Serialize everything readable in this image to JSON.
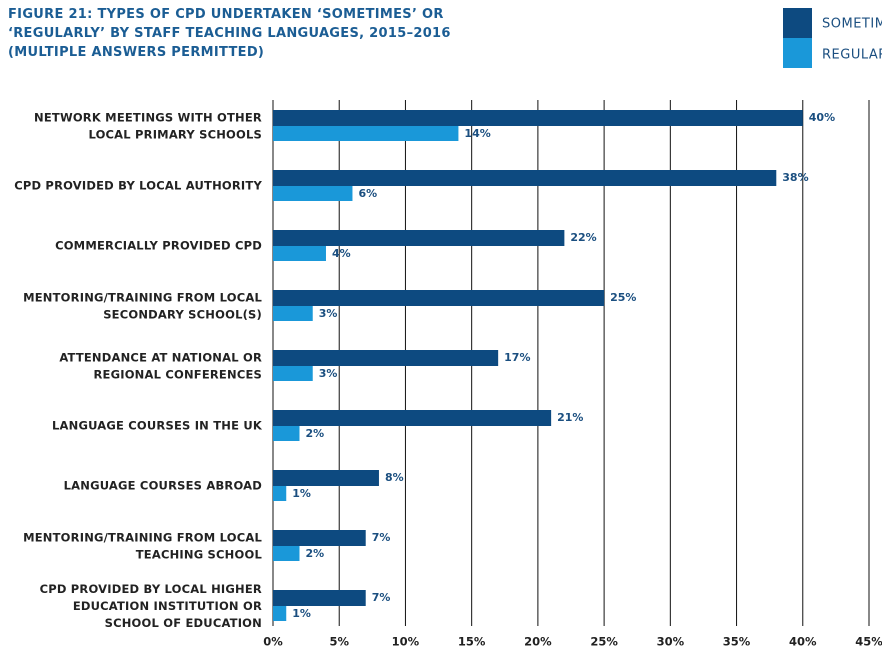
{
  "chart_data": {
    "type": "bar",
    "orientation": "horizontal",
    "title": "FIGURE 21: TYPES OF CPD UNDERTAKEN ‘SOMETIMES’ OR\n‘REGULARLY’ BY STAFF TEACHING LANGUAGES, 2015–2016\n(MULTIPLE ANSWERS PERMITTED)",
    "categories": [
      "NETWORK MEETINGS WITH OTHER\nLOCAL PRIMARY SCHOOLS",
      "CPD PROVIDED BY LOCAL AUTHORITY",
      "COMMERCIALLY PROVIDED CPD",
      "MENTORING/TRAINING FROM LOCAL\nSECONDARY SCHOOL(S)",
      "ATTENDANCE AT NATIONAL OR\nREGIONAL CONFERENCES",
      "LANGUAGE COURSES IN THE UK",
      "LANGUAGE COURSES ABROAD",
      "MENTORING/TRAINING FROM LOCAL\nTEACHING SCHOOL",
      "CPD PROVIDED BY LOCAL HIGHER\nEDUCATION INSTITUTION OR\nSCHOOL OF EDUCATION"
    ],
    "series": [
      {
        "name": "SOMETIMES",
        "color": "#0d4a80",
        "values": [
          40,
          38,
          22,
          25,
          17,
          21,
          8,
          7,
          7
        ],
        "value_labels": [
          "40%",
          "38%",
          "22%",
          "25%",
          "17%",
          "21%",
          "8%",
          "7%",
          "7%"
        ]
      },
      {
        "name": "REGULARLY",
        "color": "#1a98d9",
        "values": [
          14,
          6,
          4,
          3,
          3,
          2,
          1,
          2,
          1
        ],
        "value_labels": [
          "14%",
          "6%",
          "4%",
          "3%",
          "3%",
          "2%",
          "1%",
          "2%",
          "1%"
        ]
      }
    ],
    "xlim": [
      0,
      45
    ],
    "xticks": [
      {
        "value": 0,
        "label": "0%"
      },
      {
        "value": 5,
        "label": "5%"
      },
      {
        "value": 10,
        "label": "10%"
      },
      {
        "value": 15,
        "label": "15%"
      },
      {
        "value": 20,
        "label": "20%"
      },
      {
        "value": 25,
        "label": "25%"
      },
      {
        "value": 30,
        "label": "30%"
      },
      {
        "value": 35,
        "label": "35%"
      },
      {
        "value": 40,
        "label": "40%"
      },
      {
        "value": 45,
        "label": "45%"
      }
    ],
    "grid": true,
    "legend": "top right"
  }
}
